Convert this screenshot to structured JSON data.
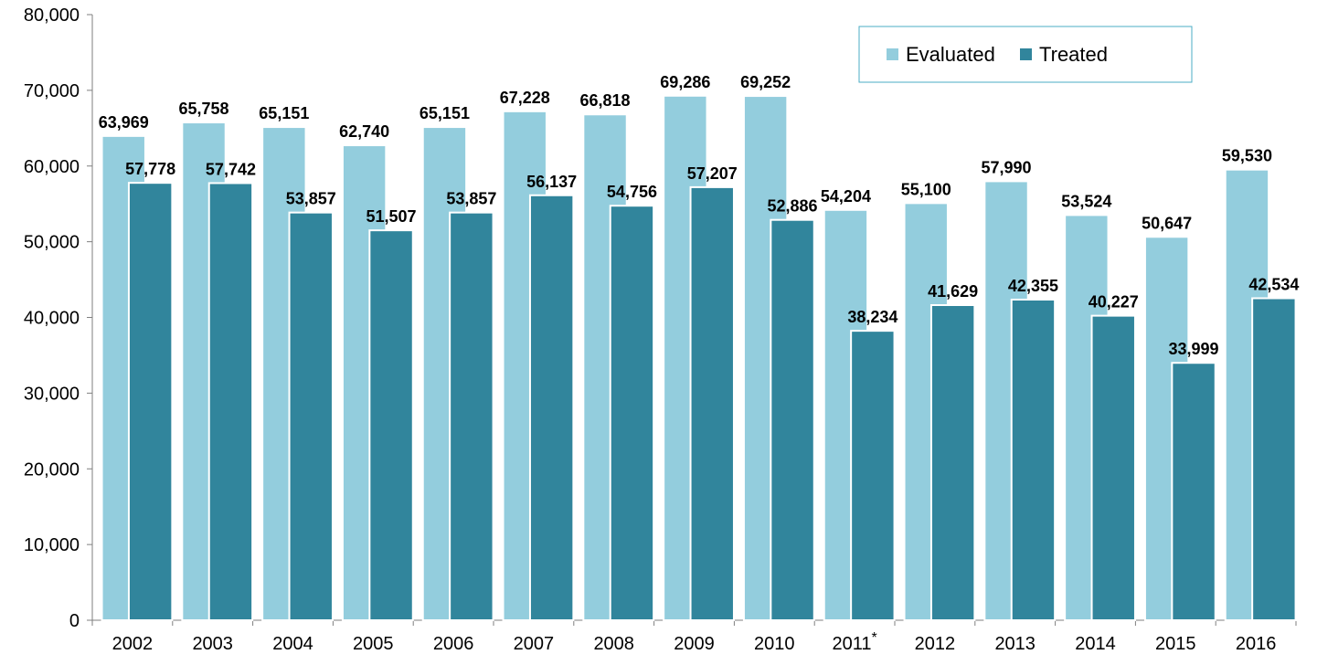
{
  "chart_data": {
    "type": "bar",
    "categories": [
      "2002",
      "2003",
      "2004",
      "2005",
      "2006",
      "2007",
      "2008",
      "2009",
      "2010",
      "2011",
      "2012",
      "2013",
      "2014",
      "2015",
      "2016"
    ],
    "category_marks": [
      "",
      "",
      "",
      "",
      "",
      "",
      "",
      "",
      "",
      "*",
      "",
      "",
      "",
      "",
      ""
    ],
    "series": [
      {
        "name": "Evaluated",
        "color": "#93cddd",
        "values": [
          63969,
          65758,
          65151,
          62740,
          65151,
          67228,
          66818,
          69286,
          69252,
          54204,
          55100,
          57990,
          53524,
          50647,
          59530
        ],
        "labels": [
          "63,969",
          "65,758",
          "65,151",
          "62,740",
          "65,151",
          "67,228",
          "66,818",
          "69,286",
          "69,252",
          "54,204",
          "55,100",
          "57,990",
          "53,524",
          "50,647",
          "59,530"
        ]
      },
      {
        "name": "Treated",
        "color": "#31859c",
        "values": [
          57778,
          57742,
          53857,
          51507,
          53857,
          56137,
          54756,
          57207,
          52886,
          38234,
          41629,
          42355,
          40227,
          33999,
          42534
        ],
        "labels": [
          "57,778",
          "57,742",
          "53,857",
          "51,507",
          "53,857",
          "56,137",
          "54,756",
          "57,207",
          "52,886",
          "38,234",
          "41,629",
          "42,355",
          "40,227",
          "33,999",
          "42,534"
        ]
      }
    ],
    "ylim": [
      0,
      80000
    ],
    "yticks": [
      0,
      10000,
      20000,
      30000,
      40000,
      50000,
      60000,
      70000,
      80000
    ],
    "ytick_labels": [
      "0",
      "10,000",
      "20,000",
      "30,000",
      "40,000",
      "50,000",
      "60,000",
      "70,000",
      "80,000"
    ],
    "title": "",
    "xlabel": "",
    "ylabel": "",
    "grid": false,
    "legend_position": "top-right",
    "legend_border_color": "#4bacc6"
  }
}
